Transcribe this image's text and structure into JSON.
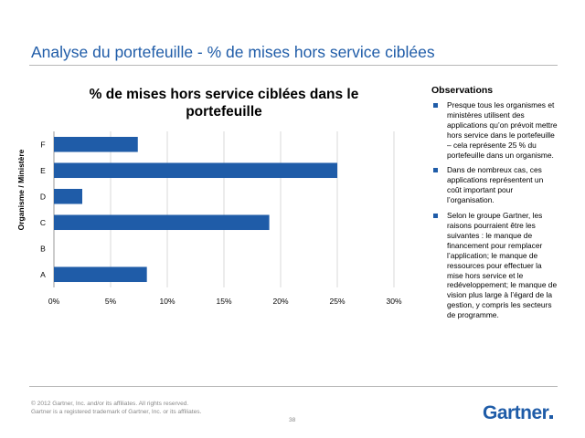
{
  "slide": {
    "title": "Analyse du portefeuille - % de mises hors service ciblées"
  },
  "chart_data": {
    "type": "bar",
    "orientation": "horizontal",
    "title": "% de mises hors service ciblées dans le portefeuille",
    "ylabel": "Organisme / Ministère",
    "xlabel": "",
    "categories": [
      "A",
      "B",
      "C",
      "D",
      "E",
      "F"
    ],
    "values": [
      8.2,
      0,
      19,
      2.5,
      25,
      7.4
    ],
    "xlim": [
      0,
      30
    ],
    "xticks": [
      "0%",
      "5%",
      "10%",
      "15%",
      "20%",
      "25%",
      "30%"
    ],
    "grid": true,
    "legend": "none",
    "bar_color": "#1f5ca8"
  },
  "observations": {
    "heading": "Observations",
    "items": [
      "Presque tous les organismes et ministères utilisent des applications qu’on prévoit mettre hors service dans le portefeuille – cela représente 25 % du portefeuille dans un organisme.",
      "Dans de nombreux cas, ces applications représentent un coût important pour l’organisation.",
      "Selon le groupe Gartner, les raisons pourraient être les suivantes : le manque de financement pour remplacer l’application; le manque de ressources pour effectuer la mise hors service et le redéveloppement; le manque de vision plus large à l’égard de la gestion, y compris les secteurs de programme."
    ]
  },
  "footer": {
    "copyright": "© 2012 Gartner, Inc. and/or its affiliates. All rights reserved.",
    "trademark": "Gartner is a registered trademark of Gartner, Inc. or its affiliates.",
    "page_number": "38",
    "logo": "Gartner"
  }
}
